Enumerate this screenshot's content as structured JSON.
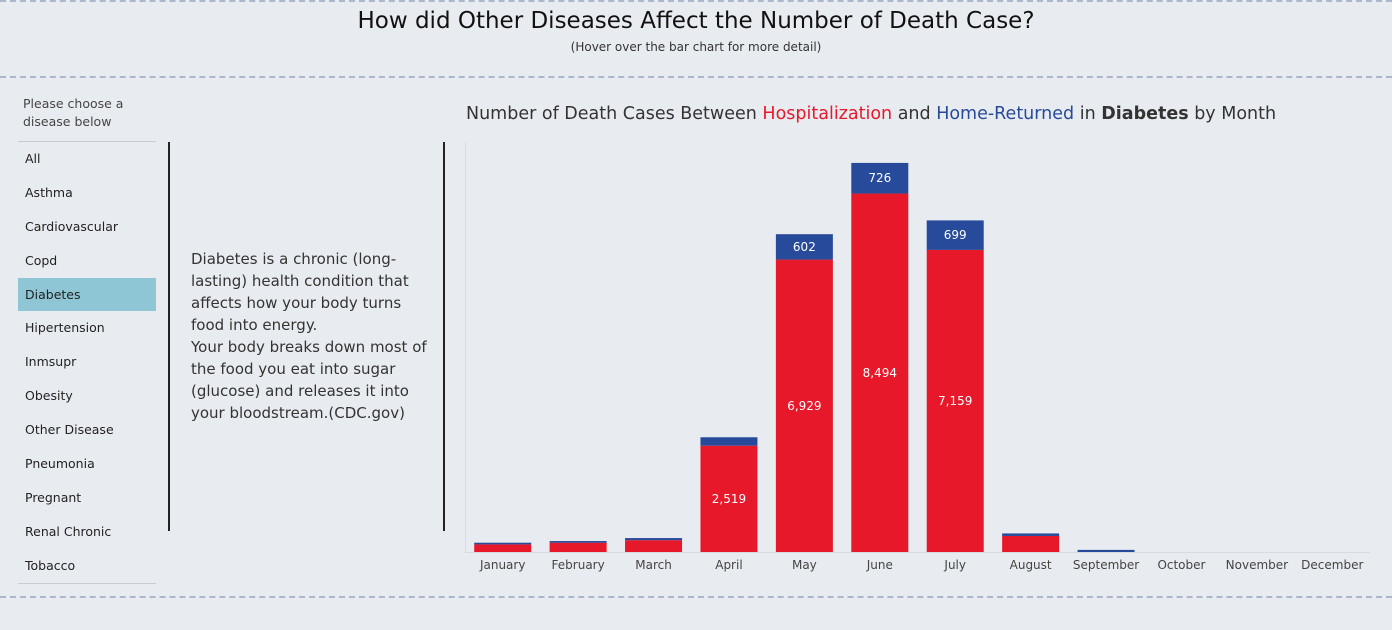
{
  "header": {
    "title": "How did Other Diseases Affect the Number of Death Case?",
    "subtitle": "(Hover over the bar chart for more detail)"
  },
  "filter": {
    "prompt": "Please choose a disease below",
    "items": [
      "All",
      "Asthma",
      "Cardiovascular",
      "Copd",
      "Diabetes",
      "Hipertension",
      "Inmsupr",
      "Obesity",
      "Other Disease",
      "Pneumonia",
      "Pregnant",
      "Renal Chronic",
      "Tobacco"
    ],
    "selected": "Diabetes"
  },
  "description": "Diabetes is a chronic (long-lasting) health condition that affects how your body turns food into energy.\nYour body breaks down most of the food you eat into sugar (glucose) and releases it into your bloodstream.(CDC.gov)",
  "colors": {
    "hospitalization": "#e8182b",
    "home_returned": "#274a9a",
    "selected_item": "#8fc6d6"
  },
  "chart_data": {
    "type": "bar",
    "stacked": true,
    "title": "Number of Death Cases Between Hospitalization and Home-Returned in Diabetes by Month",
    "title_parts": {
      "prefix": "Number of Death Cases Between ",
      "hospitalization": "Hospitalization",
      "and": " and ",
      "home_returned": "Home-Returned",
      "in": " in ",
      "disease": "Diabetes",
      "suffix": " by Month"
    },
    "categories": [
      "January",
      "February",
      "March",
      "April",
      "May",
      "June",
      "July",
      "August",
      "September",
      "October",
      "November",
      "December"
    ],
    "series": [
      {
        "name": "Hospitalization",
        "values": [
          180,
          220,
          280,
          2519,
          6929,
          8494,
          7159,
          380,
          0,
          0,
          0,
          0
        ]
      },
      {
        "name": "Home-Returned",
        "values": [
          40,
          40,
          50,
          200,
          602,
          726,
          699,
          60,
          50,
          0,
          0,
          0
        ]
      }
    ],
    "data_labels": {
      "Hospitalization": [
        "",
        "",
        "",
        "2,519",
        "6,929",
        "8,494",
        "7,159",
        "",
        "",
        "",
        "",
        ""
      ],
      "Home-Returned": [
        "",
        "",
        "",
        "",
        "602",
        "726",
        "699",
        "",
        "",
        "",
        "",
        ""
      ]
    },
    "ylim": [
      0,
      10000
    ],
    "grid": false,
    "legend": "none"
  }
}
